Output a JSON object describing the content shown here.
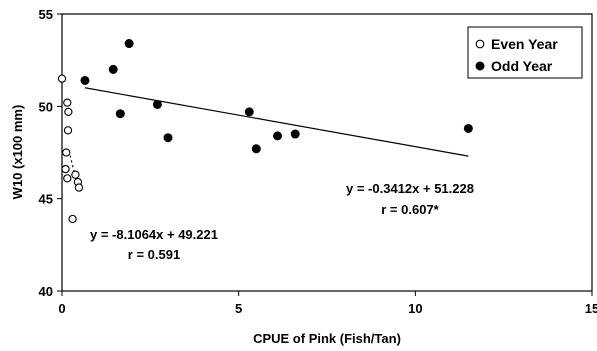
{
  "chart_data": {
    "type": "scatter",
    "title": "",
    "xlabel": "CPUE of Pink (Fish/Tan)",
    "ylabel": "W10 (x100 mm)",
    "xlim": [
      0,
      15
    ],
    "ylim": [
      40,
      55
    ],
    "xticks": [
      0,
      5,
      10,
      15
    ],
    "yticks": [
      40,
      45,
      50,
      55
    ],
    "xtick_labels": [
      "0",
      "5",
      "10",
      "15"
    ],
    "ytick_labels": [
      "40",
      "45",
      "50",
      "55"
    ],
    "grid": false,
    "legend_position": "top-right",
    "series": [
      {
        "name": "Even Year",
        "marker": "open-circle",
        "points": [
          {
            "x": 0.0,
            "y": 51.5
          },
          {
            "x": 0.15,
            "y": 50.2
          },
          {
            "x": 0.18,
            "y": 49.7
          },
          {
            "x": 0.17,
            "y": 48.7
          },
          {
            "x": 0.12,
            "y": 47.5
          },
          {
            "x": 0.1,
            "y": 46.6
          },
          {
            "x": 0.15,
            "y": 46.1
          },
          {
            "x": 0.38,
            "y": 46.3
          },
          {
            "x": 0.45,
            "y": 45.9
          },
          {
            "x": 0.48,
            "y": 45.6
          },
          {
            "x": 0.3,
            "y": 43.9
          }
        ],
        "trendline": {
          "slope": -8.1064,
          "intercept": 49.221,
          "x_range": [
            0.2,
            0.45
          ],
          "style": "dashed"
        }
      },
      {
        "name": "Odd Year",
        "marker": "filled-circle",
        "points": [
          {
            "x": 0.65,
            "y": 51.4
          },
          {
            "x": 1.45,
            "y": 52.0
          },
          {
            "x": 1.9,
            "y": 53.4
          },
          {
            "x": 1.65,
            "y": 49.6
          },
          {
            "x": 2.7,
            "y": 50.1
          },
          {
            "x": 3.0,
            "y": 48.3
          },
          {
            "x": 5.3,
            "y": 49.7
          },
          {
            "x": 5.5,
            "y": 47.7
          },
          {
            "x": 6.1,
            "y": 48.4
          },
          {
            "x": 6.6,
            "y": 48.5
          },
          {
            "x": 11.5,
            "y": 48.8
          }
        ],
        "trendline": {
          "slope": -0.3412,
          "intercept": 51.228,
          "x_range": [
            0.65,
            11.5
          ],
          "style": "solid"
        }
      }
    ],
    "annotations": [
      {
        "lines": [
          "y = -0.3412x + 51.228",
          "r = 0.607*"
        ],
        "series": "Odd Year"
      },
      {
        "lines": [
          "y = -8.1064x + 49.221",
          "r = 0.591"
        ],
        "series": "Even Year"
      }
    ]
  }
}
